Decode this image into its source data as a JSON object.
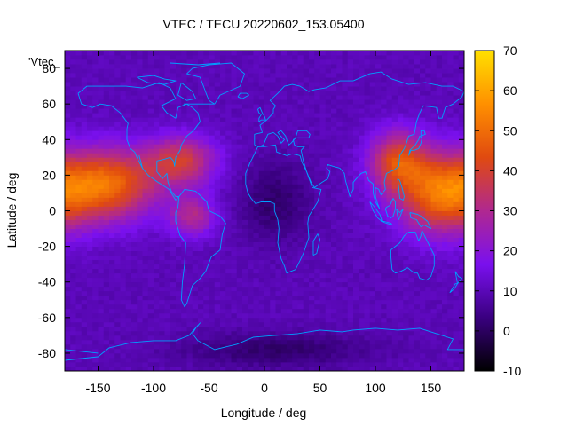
{
  "chart_data": {
    "type": "heatmap",
    "title": "VTEC / TECU 20220602_153.05400",
    "xlabel": "Longitude / deg",
    "ylabel": "Latitude / deg",
    "legend_label": "'Vtec_",
    "xlim": [
      -180,
      180
    ],
    "ylim": [
      -90,
      90
    ],
    "x_ticks": [
      -150,
      -100,
      -50,
      0,
      50,
      100,
      150
    ],
    "y_ticks": [
      -80,
      -60,
      -40,
      -20,
      0,
      20,
      40,
      60,
      80
    ],
    "colorbar": {
      "range": [
        -10,
        70
      ],
      "ticks": [
        -10,
        0,
        10,
        20,
        30,
        40,
        50,
        60,
        70
      ],
      "palette": [
        "#000000",
        "#3a0080",
        "#7a10ee",
        "#b02890",
        "#e04a10",
        "#ff9000",
        "#ffe000"
      ]
    },
    "grid": false,
    "background_level": 10,
    "hotspots": [
      {
        "lon": -140,
        "lat": 15,
        "peak": 48,
        "sigma_lon": 30,
        "sigma_lat": 14
      },
      {
        "lon": -75,
        "lat": 28,
        "peak": 38,
        "sigma_lon": 22,
        "sigma_lat": 10
      },
      {
        "lon": -65,
        "lat": -3,
        "peak": 30,
        "sigma_lon": 15,
        "sigma_lat": 8
      },
      {
        "lon": 160,
        "lat": 10,
        "peak": 50,
        "sigma_lon": 28,
        "sigma_lat": 16
      },
      {
        "lon": 120,
        "lat": 28,
        "peak": 40,
        "sigma_lon": 18,
        "sigma_lat": 12
      }
    ],
    "coldspots": [
      {
        "lon": 10,
        "lat": 5,
        "depth": 9,
        "sigma_lon": 22,
        "sigma_lat": 16
      },
      {
        "lon": 10,
        "lat": -78,
        "depth": 9,
        "sigma_lon": 60,
        "sigma_lat": 7
      }
    ]
  },
  "colors": {
    "coastline": "#00a0ff",
    "frame": "#000000",
    "background": "#ffffff"
  }
}
